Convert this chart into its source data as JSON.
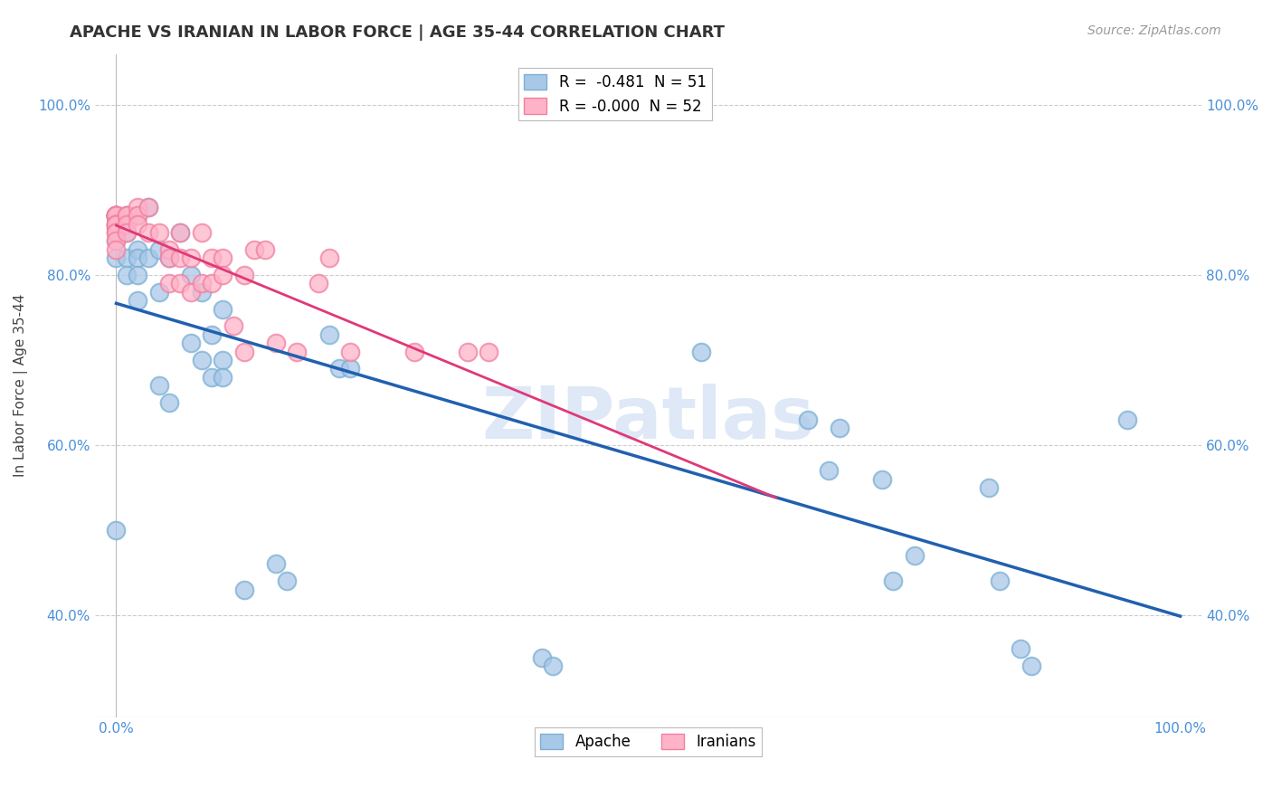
{
  "title": "APACHE VS IRANIAN IN LABOR FORCE | AGE 35-44 CORRELATION CHART",
  "source": "Source: ZipAtlas.com",
  "ylabel": "In Labor Force | Age 35-44",
  "xlim": [
    -0.02,
    1.02
  ],
  "ylim": [
    0.28,
    1.06
  ],
  "x_ticks": [
    0.0,
    0.2,
    0.4,
    0.6,
    0.8,
    1.0
  ],
  "x_tick_labels": [
    "0.0%",
    "",
    "",
    "",
    "",
    "100.0%"
  ],
  "y_ticks": [
    0.4,
    0.6,
    0.8,
    1.0
  ],
  "y_tick_labels": [
    "40.0%",
    "60.0%",
    "80.0%",
    "100.0%"
  ],
  "apache_color": "#a8c8e8",
  "apache_edge_color": "#7bafd4",
  "iranian_color": "#ffb3c8",
  "iranian_edge_color": "#f080a0",
  "trendline_apache_color": "#2060b0",
  "trendline_iranian_color": "#e03878",
  "watermark_color": "#c8daf0",
  "background_color": "#ffffff",
  "grid_color": "#cccccc",
  "tick_color": "#4a90d9",
  "title_color": "#333333",
  "source_color": "#999999",
  "ylabel_color": "#444444",
  "apache_x": [
    0.0,
    0.0,
    0.0,
    0.0,
    0.0,
    0.01,
    0.01,
    0.01,
    0.01,
    0.02,
    0.02,
    0.02,
    0.02,
    0.02,
    0.03,
    0.03,
    0.04,
    0.04,
    0.04,
    0.05,
    0.05,
    0.06,
    0.07,
    0.07,
    0.08,
    0.08,
    0.09,
    0.09,
    0.1,
    0.1,
    0.1,
    0.12,
    0.15,
    0.16,
    0.2,
    0.21,
    0.22,
    0.4,
    0.41,
    0.55,
    0.65,
    0.67,
    0.68,
    0.72,
    0.73,
    0.75,
    0.82,
    0.83,
    0.85,
    0.86,
    0.95
  ],
  "apache_y": [
    0.868,
    0.855,
    0.84,
    0.82,
    0.5,
    0.87,
    0.85,
    0.82,
    0.8,
    0.87,
    0.83,
    0.82,
    0.8,
    0.77,
    0.88,
    0.82,
    0.83,
    0.78,
    0.67,
    0.82,
    0.65,
    0.85,
    0.8,
    0.72,
    0.78,
    0.7,
    0.73,
    0.68,
    0.76,
    0.7,
    0.68,
    0.43,
    0.46,
    0.44,
    0.73,
    0.69,
    0.69,
    0.35,
    0.34,
    0.71,
    0.63,
    0.57,
    0.62,
    0.56,
    0.44,
    0.47,
    0.55,
    0.44,
    0.36,
    0.34,
    0.63
  ],
  "iranian_x": [
    0.0,
    0.0,
    0.0,
    0.0,
    0.0,
    0.0,
    0.0,
    0.0,
    0.0,
    0.0,
    0.0,
    0.0,
    0.0,
    0.0,
    0.0,
    0.01,
    0.01,
    0.01,
    0.01,
    0.02,
    0.02,
    0.02,
    0.03,
    0.03,
    0.04,
    0.05,
    0.05,
    0.05,
    0.06,
    0.06,
    0.06,
    0.07,
    0.07,
    0.08,
    0.08,
    0.09,
    0.09,
    0.1,
    0.1,
    0.11,
    0.12,
    0.12,
    0.13,
    0.14,
    0.15,
    0.17,
    0.19,
    0.2,
    0.22,
    0.28,
    0.33,
    0.35
  ],
  "iranian_y": [
    0.87,
    0.87,
    0.87,
    0.87,
    0.87,
    0.87,
    0.87,
    0.87,
    0.86,
    0.86,
    0.86,
    0.85,
    0.85,
    0.84,
    0.83,
    0.87,
    0.87,
    0.86,
    0.85,
    0.88,
    0.87,
    0.86,
    0.88,
    0.85,
    0.85,
    0.83,
    0.82,
    0.79,
    0.85,
    0.82,
    0.79,
    0.82,
    0.78,
    0.85,
    0.79,
    0.82,
    0.79,
    0.82,
    0.8,
    0.74,
    0.71,
    0.8,
    0.83,
    0.83,
    0.72,
    0.71,
    0.79,
    0.82,
    0.71,
    0.71,
    0.71,
    0.71
  ],
  "apache_trendline_x": [
    0.0,
    1.0
  ],
  "iranian_trendline_x": [
    0.0,
    0.62
  ]
}
